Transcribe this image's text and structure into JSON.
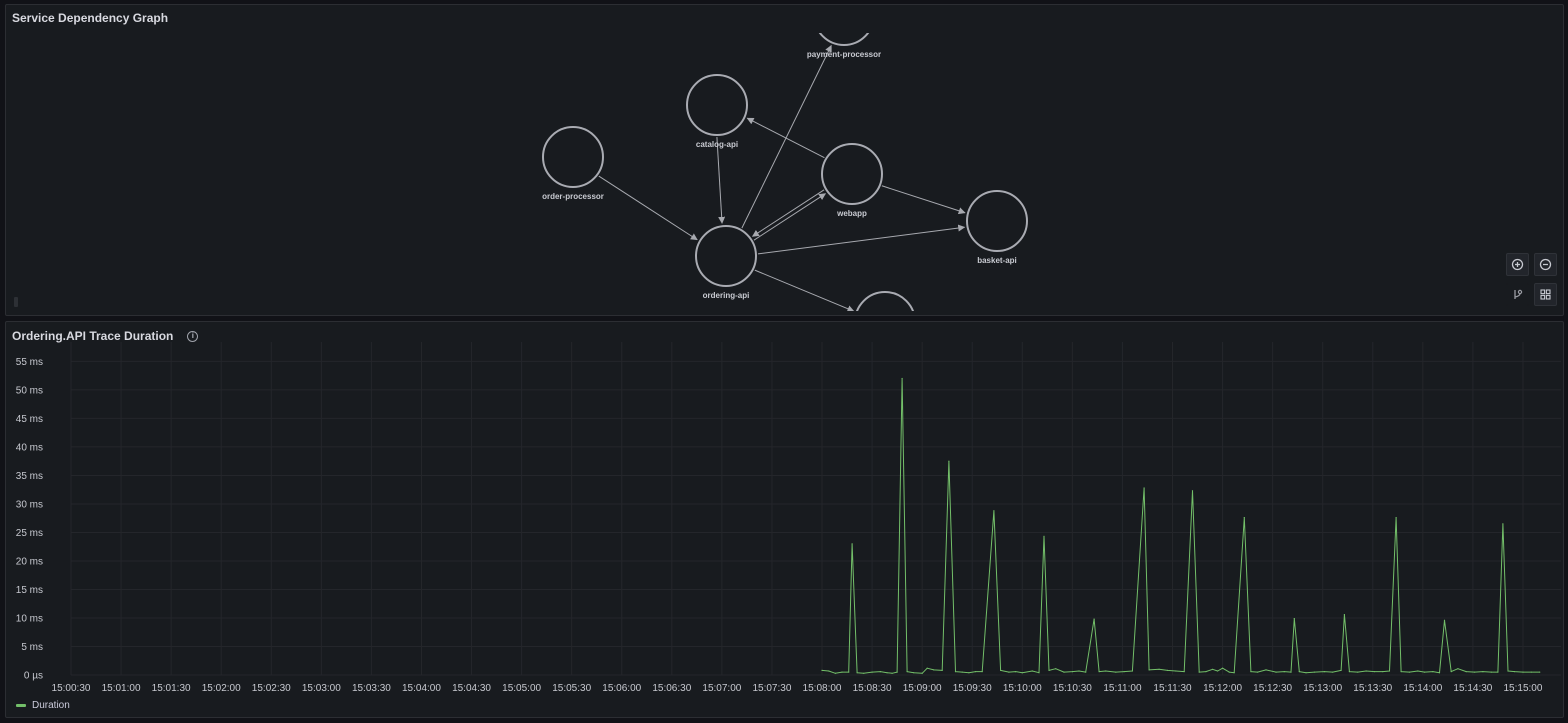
{
  "graph_panel": {
    "title": "Service Dependency Graph",
    "nodes": [
      {
        "id": "payment-processor",
        "label": "payment-processor"
      },
      {
        "id": "catalog-api",
        "label": "catalog-api"
      },
      {
        "id": "order-processor",
        "label": "order-processor"
      },
      {
        "id": "webapp",
        "label": "webapp"
      },
      {
        "id": "basket-api",
        "label": "basket-api"
      },
      {
        "id": "ordering-api",
        "label": "ordering-api"
      },
      {
        "id": "unlabeled-bottom",
        "label": ""
      }
    ],
    "edges": [
      {
        "from": "order-processor",
        "to": "ordering-api"
      },
      {
        "from": "catalog-api",
        "to": "ordering-api"
      },
      {
        "from": "ordering-api",
        "to": "payment-processor"
      },
      {
        "from": "webapp",
        "to": "catalog-api"
      },
      {
        "from": "webapp",
        "to": "ordering-api"
      },
      {
        "from": "ordering-api",
        "to": "webapp"
      },
      {
        "from": "webapp",
        "to": "basket-api"
      },
      {
        "from": "ordering-api",
        "to": "basket-api"
      },
      {
        "from": "ordering-api",
        "to": "unlabeled-bottom"
      }
    ],
    "controls": [
      "zoom-in",
      "zoom-out",
      "layout-toggle",
      "grid-view"
    ]
  },
  "chart_panel": {
    "title": "Ordering.API Trace Duration",
    "info_icon": "info-icon",
    "legend": "Duration"
  },
  "chart_data": {
    "type": "line",
    "color": "#73bf69",
    "ytick_labels": [
      "0 µs",
      "5 ms",
      "10 ms",
      "15 ms",
      "20 ms",
      "25 ms",
      "30 ms",
      "35 ms",
      "40 ms",
      "45 ms",
      "50 ms",
      "55 ms"
    ],
    "ylim": [
      0,
      57
    ],
    "xtick_labels": [
      "15:00:30",
      "15:01:00",
      "15:01:30",
      "15:02:00",
      "15:02:30",
      "15:03:00",
      "15:03:30",
      "15:04:00",
      "15:04:30",
      "15:05:00",
      "15:05:30",
      "15:06:00",
      "15:06:30",
      "15:07:00",
      "15:07:30",
      "15:08:00",
      "15:08:30",
      "15:09:00",
      "15:09:30",
      "15:10:00",
      "15:10:30",
      "15:11:00",
      "15:11:30",
      "15:12:00",
      "15:12:30",
      "15:13:00",
      "15:13:30",
      "15:14:00",
      "15:14:30",
      "15:15:00"
    ],
    "xlim": [
      "15:00:30",
      "15:15:12"
    ],
    "grid": true,
    "series": [
      {
        "name": "Duration",
        "points": [
          [
            "15:08:00",
            0.8
          ],
          [
            "15:08:04",
            0.7
          ],
          [
            "15:08:08",
            0.3
          ],
          [
            "15:08:12",
            0.5
          ],
          [
            "15:08:16",
            0.5
          ],
          [
            "15:08:18",
            23
          ],
          [
            "15:08:21",
            0.4
          ],
          [
            "15:08:25",
            0.3
          ],
          [
            "15:08:30",
            0.5
          ],
          [
            "15:08:35",
            0.6
          ],
          [
            "15:08:39",
            0.4
          ],
          [
            "15:08:42",
            0.3
          ],
          [
            "15:08:45",
            0.5
          ],
          [
            "15:08:48",
            52
          ],
          [
            "15:08:51",
            0.6
          ],
          [
            "15:08:55",
            0.4
          ],
          [
            "15:09:00",
            0.3
          ],
          [
            "15:09:03",
            1.2
          ],
          [
            "15:09:07",
            0.9
          ],
          [
            "15:09:12",
            0.8
          ],
          [
            "15:09:16",
            37.5
          ],
          [
            "15:09:20",
            0.6
          ],
          [
            "15:09:24",
            0.5
          ],
          [
            "15:09:28",
            0.4
          ],
          [
            "15:09:32",
            0.6
          ],
          [
            "15:09:36",
            0.6
          ],
          [
            "15:09:43",
            28.8
          ],
          [
            "15:09:47",
            0.8
          ],
          [
            "15:09:52",
            0.5
          ],
          [
            "15:09:56",
            0.6
          ],
          [
            "15:10:00",
            0.4
          ],
          [
            "15:10:06",
            0.7
          ],
          [
            "15:10:10",
            0.4
          ],
          [
            "15:10:13",
            24.3
          ],
          [
            "15:10:16",
            0.8
          ],
          [
            "15:10:20",
            1.1
          ],
          [
            "15:10:25",
            0.5
          ],
          [
            "15:10:30",
            0.6
          ],
          [
            "15:10:34",
            0.7
          ],
          [
            "15:10:38",
            0.5
          ],
          [
            "15:10:43",
            9.8
          ],
          [
            "15:10:46",
            0.6
          ],
          [
            "15:10:50",
            0.7
          ],
          [
            "15:10:56",
            0.5
          ],
          [
            "15:11:01",
            0.6
          ],
          [
            "15:11:06",
            0.7
          ],
          [
            "15:11:13",
            32.8
          ],
          [
            "15:11:16",
            0.9
          ],
          [
            "15:11:22",
            1.0
          ],
          [
            "15:11:27",
            0.8
          ],
          [
            "15:11:32",
            0.7
          ],
          [
            "15:11:37",
            0.6
          ],
          [
            "15:11:42",
            32.3
          ],
          [
            "15:11:46",
            0.5
          ],
          [
            "15:11:50",
            0.6
          ],
          [
            "15:11:54",
            1.0
          ],
          [
            "15:11:57",
            0.7
          ],
          [
            "15:12:00",
            1.2
          ],
          [
            "15:12:04",
            0.5
          ],
          [
            "15:12:07",
            0.4
          ],
          [
            "15:12:13",
            27.6
          ],
          [
            "15:12:17",
            0.6
          ],
          [
            "15:12:21",
            0.5
          ],
          [
            "15:12:26",
            0.9
          ],
          [
            "15:12:32",
            0.5
          ],
          [
            "15:12:37",
            0.6
          ],
          [
            "15:12:41",
            0.5
          ],
          [
            "15:12:43",
            9.9
          ],
          [
            "15:12:46",
            0.6
          ],
          [
            "15:12:50",
            0.4
          ],
          [
            "15:12:55",
            0.5
          ],
          [
            "15:13:01",
            0.6
          ],
          [
            "15:13:06",
            0.5
          ],
          [
            "15:13:11",
            0.8
          ],
          [
            "15:13:13",
            10.6
          ],
          [
            "15:13:16",
            0.6
          ],
          [
            "15:13:21",
            0.5
          ],
          [
            "15:13:26",
            0.7
          ],
          [
            "15:13:31",
            0.6
          ],
          [
            "15:13:36",
            0.6
          ],
          [
            "15:13:40",
            0.7
          ],
          [
            "15:13:44",
            27.6
          ],
          [
            "15:13:47",
            0.6
          ],
          [
            "15:13:52",
            0.5
          ],
          [
            "15:13:57",
            0.7
          ],
          [
            "15:14:01",
            0.5
          ],
          [
            "15:14:06",
            0.6
          ],
          [
            "15:14:10",
            0.4
          ],
          [
            "15:14:13",
            9.6
          ],
          [
            "15:14:17",
            0.6
          ],
          [
            "15:14:21",
            1.1
          ],
          [
            "15:14:26",
            0.6
          ],
          [
            "15:14:31",
            0.5
          ],
          [
            "15:14:36",
            0.6
          ],
          [
            "15:14:41",
            0.5
          ],
          [
            "15:14:45",
            0.5
          ],
          [
            "15:14:48",
            26.5
          ],
          [
            "15:14:51",
            0.7
          ],
          [
            "15:14:55",
            0.6
          ],
          [
            "15:15:00",
            0.5
          ],
          [
            "15:15:05",
            0.5
          ],
          [
            "15:15:10",
            0.5
          ]
        ]
      }
    ]
  }
}
